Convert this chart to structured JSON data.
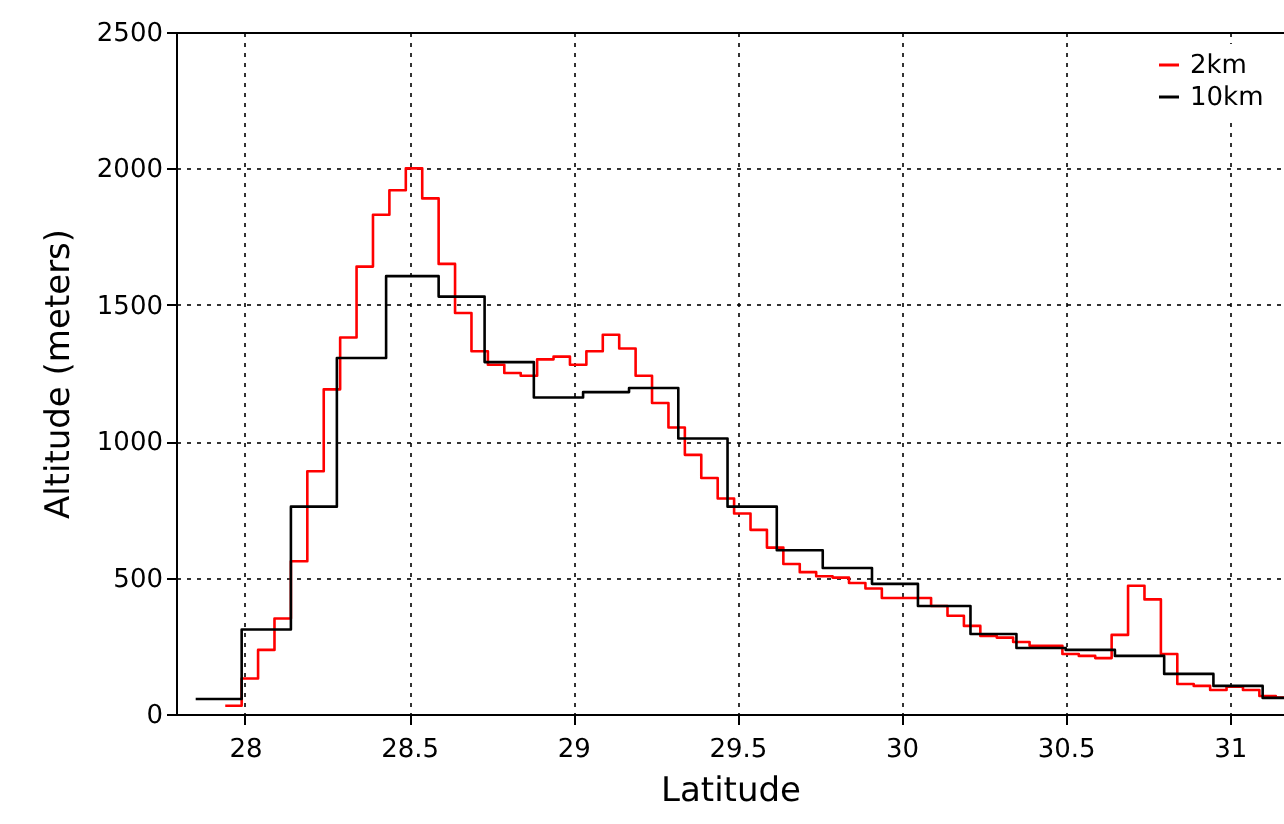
{
  "chart_data": {
    "type": "step",
    "xlabel": "Latitude",
    "ylabel": "Altitude (meters)",
    "xlim": [
      27.79,
      31.165
    ],
    "ylim": [
      0,
      2500
    ],
    "xticks": [
      28,
      28.5,
      29,
      29.5,
      30,
      30.5,
      31
    ],
    "yticks": [
      0,
      500,
      1000,
      1500,
      2000,
      2500
    ],
    "grid": true,
    "legend": "top right",
    "series": [
      {
        "name": "2km",
        "color": "#ff0000",
        "x": [
          27.94,
          27.99,
          28.04,
          28.09,
          28.14,
          28.19,
          28.24,
          28.29,
          28.34,
          28.39,
          28.44,
          28.49,
          28.54,
          28.59,
          28.64,
          28.69,
          28.74,
          28.79,
          28.84,
          28.89,
          28.94,
          28.99,
          29.04,
          29.09,
          29.14,
          29.19,
          29.24,
          29.29,
          29.34,
          29.39,
          29.44,
          29.49,
          29.54,
          29.59,
          29.64,
          29.69,
          29.74,
          29.79,
          29.84,
          29.89,
          29.94,
          29.99,
          30.04,
          30.09,
          30.14,
          30.19,
          30.24,
          30.29,
          30.34,
          30.39,
          30.44,
          30.49,
          30.54,
          30.59,
          30.64,
          30.69,
          30.74,
          30.79,
          30.84,
          30.89,
          30.94,
          30.99,
          31.04,
          31.09,
          31.14,
          31.165
        ],
        "values": [
          30,
          130,
          235,
          350,
          560,
          890,
          1190,
          1380,
          1640,
          1830,
          1920,
          2000,
          1890,
          1650,
          1470,
          1330,
          1280,
          1250,
          1240,
          1300,
          1310,
          1280,
          1330,
          1390,
          1340,
          1240,
          1140,
          1050,
          950,
          865,
          790,
          735,
          675,
          610,
          550,
          520,
          505,
          500,
          480,
          460,
          425,
          425,
          425,
          396,
          360,
          323,
          286,
          280,
          264,
          250,
          250,
          220,
          213,
          205,
          290,
          470,
          420,
          220,
          110,
          103,
          88,
          100,
          88,
          66,
          60,
          60
        ]
      },
      {
        "name": "10km",
        "color": "#000000",
        "x": [
          27.85,
          27.99,
          28.14,
          28.28,
          28.43,
          28.59,
          28.73,
          28.88,
          29.03,
          29.17,
          29.32,
          29.47,
          29.62,
          29.76,
          29.91,
          30.05,
          30.21,
          30.35,
          30.5,
          30.65,
          30.8,
          30.95,
          31.1,
          31.165
        ],
        "values": [
          55,
          310,
          760,
          1305,
          1605,
          1530,
          1290,
          1160,
          1180,
          1195,
          1010,
          760,
          600,
          535,
          477,
          396,
          293,
          242,
          235,
          213,
          147,
          103,
          59,
          59
        ]
      }
    ]
  }
}
